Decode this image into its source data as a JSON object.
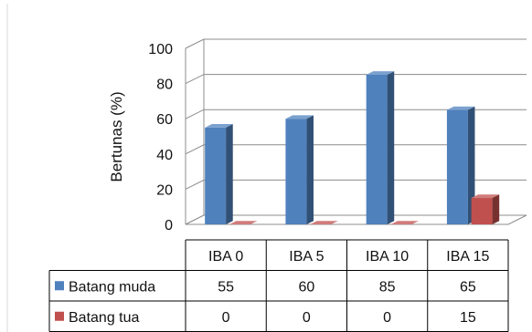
{
  "chart_data": {
    "type": "bar",
    "style": "3d-clustered-column-with-data-table",
    "ylabel": "Bertunas (%)",
    "ylim": [
      0,
      100
    ],
    "yticks": [
      0,
      20,
      40,
      60,
      80,
      100
    ],
    "grid": true,
    "categories": [
      "IBA 0",
      "IBA 5",
      "IBA 10",
      "IBA 15"
    ],
    "series": [
      {
        "name": "Batang muda",
        "values": [
          55,
          60,
          85,
          65
        ],
        "color": "#4F81BD"
      },
      {
        "name": "Batang tua",
        "values": [
          0,
          0,
          0,
          15
        ],
        "color": "#C0504D"
      }
    ],
    "legend_placement": "data-table",
    "data_table": {
      "rows": [
        {
          "label": "Batang muda",
          "values": [
            "55",
            "60",
            "85",
            "65"
          ]
        },
        {
          "label": "Batang tua",
          "values": [
            "0",
            "0",
            "0",
            "15"
          ]
        }
      ]
    }
  }
}
